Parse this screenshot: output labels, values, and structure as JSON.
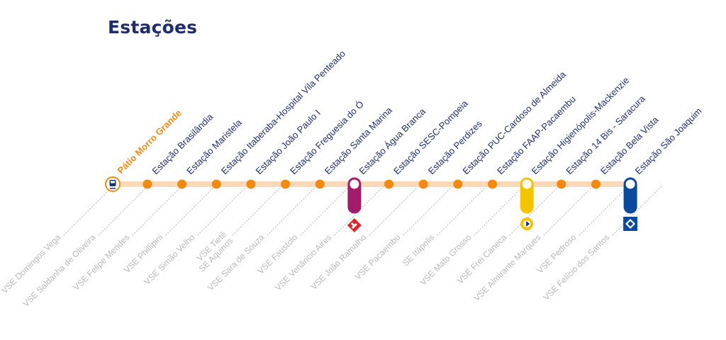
{
  "title": "Estações",
  "colors": {
    "title": "#1f2d6b",
    "line": "#fbd9b8",
    "station_dot": "#f28a12",
    "station_text": "#1f2d6b",
    "yard_text": "#f28a12",
    "ventilation_text": "#b8b8b8",
    "line_purple": "#a11d6b",
    "line_yellow": "#f5c400",
    "line_blue": "#0a4a9c",
    "cptm_red": "#e3242b"
  },
  "yard": {
    "label": "Pátio Morro Grande",
    "icon": "train-icon"
  },
  "stations": [
    {
      "label": "Estação Brasilândia"
    },
    {
      "label": "Estação Maristela"
    },
    {
      "label": "Estação Itaberaba-Hospital Vila Penteado"
    },
    {
      "label": "Estação João Paulo I"
    },
    {
      "label": "Estação Freguesia do Ó"
    },
    {
      "label": "Estação Santa Marina"
    },
    {
      "label": "Estação Água Branca",
      "transfer": "purple",
      "transfer_icon": "cptm-logo-icon"
    },
    {
      "label": "Estação SESC-Pompeia"
    },
    {
      "label": "Estação Perdizes"
    },
    {
      "label": "Estação PUC-Cardoso de Almeida"
    },
    {
      "label": "Estação FAAP-Pacaembu"
    },
    {
      "label": "Estação Higienópolis-Mackenzie",
      "transfer": "yellow",
      "transfer_icon": "viaquatro-logo-icon"
    },
    {
      "label": "Estação 14 Bis - Saracura"
    },
    {
      "label": "Estação Bela Vista"
    },
    {
      "label": "Estação São Joaquim",
      "transfer": "blue",
      "transfer_icon": "metro-logo-icon"
    }
  ],
  "ventilation_shafts": [
    {
      "label": "VSE Domingos Vega"
    },
    {
      "label": "VSE Saldanha de Oliveira"
    },
    {
      "label": "VSE Felipe Mendes"
    },
    {
      "label": "VSE Phillipini"
    },
    {
      "label": "VSE Simão Velho"
    },
    {
      "label": "VSE Tietê",
      "label2": "SE Aquinos"
    },
    {
      "label": "VSE Sara de Souza"
    },
    {
      "label": "VSE Faustolo"
    },
    {
      "label": "VSE Venâncio Aires"
    },
    {
      "label": "VSE João Ramalho"
    },
    {
      "label": "VSE Pacaembu"
    },
    {
      "label": "SE Itápolis"
    },
    {
      "label": "VSE Mato Grosso"
    },
    {
      "label": "VSE Frei Caneca"
    },
    {
      "label": "VSE Almirante Marques"
    },
    {
      "label": "VSE Pedroso"
    },
    {
      "label": "VSE Felício dos Santos"
    }
  ]
}
